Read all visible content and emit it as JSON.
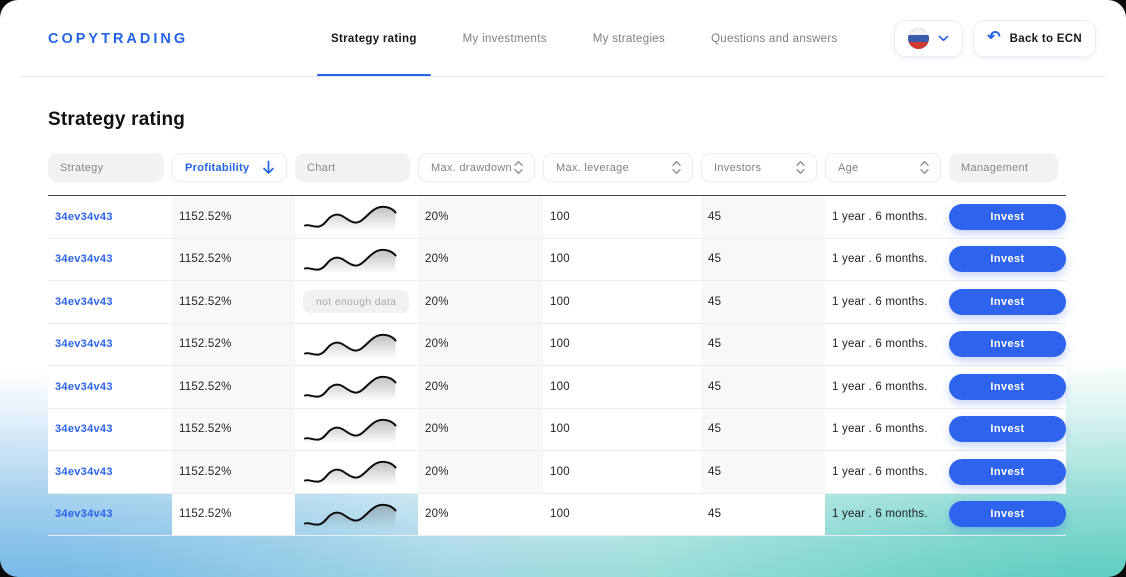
{
  "brand": {
    "logo": "COPYTRADING"
  },
  "nav": [
    {
      "label": "Strategy rating",
      "active": true
    },
    {
      "label": "My investments",
      "active": false
    },
    {
      "label": "My strategies",
      "active": false
    },
    {
      "label": "Questions and answers",
      "active": false
    }
  ],
  "header_actions": {
    "language": {
      "flag_icon": "russia-flag-icon",
      "chevron_icon": "chevron-down-icon"
    },
    "back": {
      "icon": "undo-arrow-icon",
      "label": "Back to ECN"
    }
  },
  "page": {
    "title": "Strategy rating"
  },
  "table": {
    "columns": [
      {
        "label": "Strategy",
        "style": "plain"
      },
      {
        "label": "Profitability",
        "style": "sorted",
        "sort_icon": "arrow-down-icon"
      },
      {
        "label": "Chart",
        "style": "plain"
      },
      {
        "label": "Max. drawdown",
        "style": "sortable",
        "sort_icon": "sort-arrows-icon"
      },
      {
        "label": "Max. leverage",
        "style": "sortable",
        "sort_icon": "sort-arrows-icon"
      },
      {
        "label": "Investors",
        "style": "sortable",
        "sort_icon": "sort-arrows-icon"
      },
      {
        "label": "Age",
        "style": "sortable",
        "sort_icon": "sort-arrows-icon"
      },
      {
        "label": "Management",
        "style": "plain"
      }
    ],
    "no_data_label": "not enough data",
    "rows": [
      {
        "strategy": "34ev34v43",
        "profitability": "1152.52%",
        "chart": "sparkline",
        "max_drawdown": "20%",
        "max_leverage": "100",
        "investors": "45",
        "age": "1 year . 6 months.",
        "action": "Invest"
      },
      {
        "strategy": "34ev34v43",
        "profitability": "1152.52%",
        "chart": "sparkline",
        "max_drawdown": "20%",
        "max_leverage": "100",
        "investors": "45",
        "age": "1 year . 6 months.",
        "action": "Invest"
      },
      {
        "strategy": "34ev34v43",
        "profitability": "1152.52%",
        "chart": "no-data",
        "max_drawdown": "20%",
        "max_leverage": "100",
        "investors": "45",
        "age": "1 year . 6 months.",
        "action": "Invest"
      },
      {
        "strategy": "34ev34v43",
        "profitability": "1152.52%",
        "chart": "sparkline",
        "max_drawdown": "20%",
        "max_leverage": "100",
        "investors": "45",
        "age": "1 year . 6 months.",
        "action": "Invest"
      },
      {
        "strategy": "34ev34v43",
        "profitability": "1152.52%",
        "chart": "sparkline",
        "max_drawdown": "20%",
        "max_leverage": "100",
        "investors": "45",
        "age": "1 year . 6 months.",
        "action": "Invest"
      },
      {
        "strategy": "34ev34v43",
        "profitability": "1152.52%",
        "chart": "sparkline",
        "max_drawdown": "20%",
        "max_leverage": "100",
        "investors": "45",
        "age": "1 year . 6 months.",
        "action": "Invest"
      },
      {
        "strategy": "34ev34v43",
        "profitability": "1152.52%",
        "chart": "sparkline",
        "max_drawdown": "20%",
        "max_leverage": "100",
        "investors": "45",
        "age": "1 year . 6 months.",
        "action": "Invest"
      },
      {
        "strategy": "34ev34v43",
        "profitability": "1152.52%",
        "chart": "sparkline",
        "max_drawdown": "20%",
        "max_leverage": "100",
        "investors": "45",
        "age": "1 year . 6 months.",
        "action": "Invest"
      }
    ]
  },
  "colors": {
    "accent": "#2563eb",
    "invest_button": "#2d63ed",
    "table_top_border": "#424247",
    "gradient_bottom_left": "#a3d4f0",
    "gradient_bottom_right": "#8bd9cf"
  }
}
